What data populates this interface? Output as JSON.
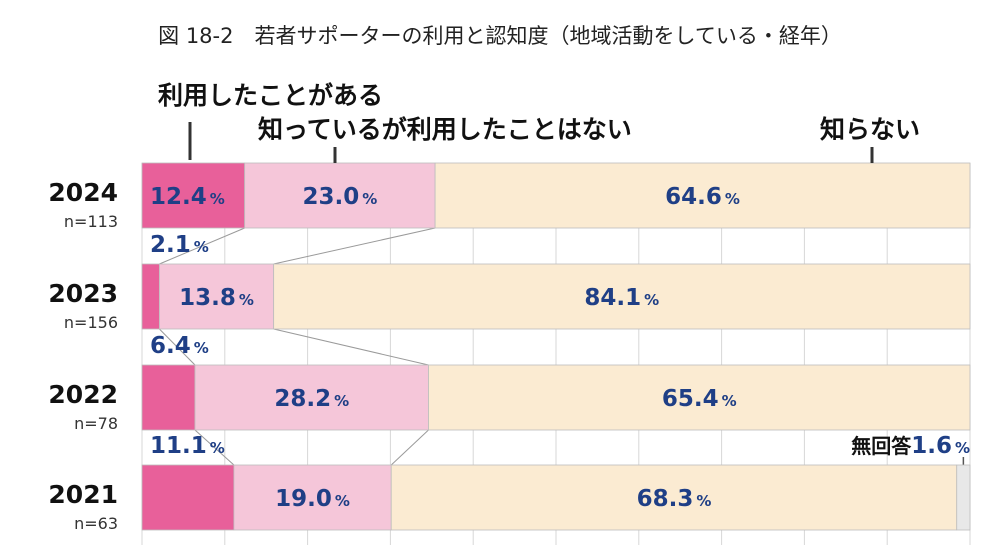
{
  "title": "図 18-2　若者サポーターの利用と認知度（地域活動をしている・経年）",
  "colors": {
    "used": "#e8609a",
    "known": "#f5c6d9",
    "unknown": "#fbebd2",
    "no_response": "#e8e8e8",
    "grid": "#d7d7d7",
    "label_blue": "#1f3f86"
  },
  "chart_data": {
    "type": "bar",
    "orientation": "horizontal",
    "stacked": true,
    "percent": true,
    "xlim": [
      0,
      100
    ],
    "grid": true,
    "series": [
      {
        "name": "利用したことがある",
        "values": [
          12.4,
          2.1,
          6.4,
          11.1
        ]
      },
      {
        "name": "知っているが利用したことはない",
        "values": [
          23.0,
          13.8,
          28.2,
          19.0
        ]
      },
      {
        "name": "知らない",
        "values": [
          64.6,
          84.1,
          65.4,
          68.3
        ]
      },
      {
        "name": "無回答",
        "values": [
          0,
          0,
          0,
          1.6
        ]
      }
    ],
    "categories": [
      {
        "year": "2024",
        "n": "n=113"
      },
      {
        "year": "2023",
        "n": "n=156"
      },
      {
        "year": "2022",
        "n": "n=78"
      },
      {
        "year": "2021",
        "n": "n=63"
      }
    ],
    "value_labels": [
      {
        "row": 0,
        "series": 0,
        "value": "12.4",
        "unit": "%",
        "pos": "inside"
      },
      {
        "row": 0,
        "series": 1,
        "value": "23.0",
        "unit": "%",
        "pos": "inside"
      },
      {
        "row": 0,
        "series": 2,
        "value": "64.6",
        "unit": "%",
        "pos": "inside"
      },
      {
        "row": 1,
        "series": 0,
        "value": "2.1",
        "unit": "%",
        "pos": "above"
      },
      {
        "row": 1,
        "series": 1,
        "value": "13.8",
        "unit": "%",
        "pos": "inside"
      },
      {
        "row": 1,
        "series": 2,
        "value": "84.1",
        "unit": "%",
        "pos": "inside"
      },
      {
        "row": 2,
        "series": 0,
        "value": "6.4",
        "unit": "%",
        "pos": "above"
      },
      {
        "row": 2,
        "series": 1,
        "value": "28.2",
        "unit": "%",
        "pos": "inside"
      },
      {
        "row": 2,
        "series": 2,
        "value": "65.4",
        "unit": "%",
        "pos": "inside"
      },
      {
        "row": 3,
        "series": 0,
        "value": "11.1",
        "unit": "%",
        "pos": "above"
      },
      {
        "row": 3,
        "series": 1,
        "value": "19.0",
        "unit": "%",
        "pos": "inside"
      },
      {
        "row": 3,
        "series": 2,
        "value": "68.3",
        "unit": "%",
        "pos": "inside"
      },
      {
        "row": 3,
        "series": 3,
        "value": "1.6",
        "unit": "%",
        "pos": "callout",
        "prefix": "無回答"
      }
    ]
  }
}
